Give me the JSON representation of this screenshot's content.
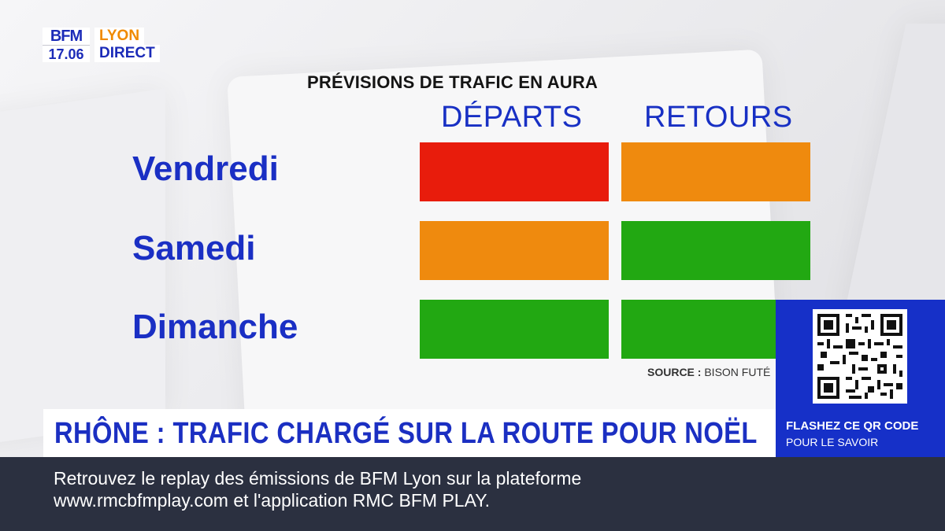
{
  "channel": {
    "brand": "BFM",
    "time": "17.06",
    "city": "LYON",
    "live": "DIRECT"
  },
  "graphic": {
    "title": "PRÉVISIONS DE TRAFIC EN AURA",
    "columns": [
      "DÉPARTS",
      "RETOURS"
    ],
    "rows": [
      {
        "day": "Vendredi",
        "departs_color": "#e81c0c",
        "retours_color": "#ef8a0e"
      },
      {
        "day": "Samedi",
        "departs_color": "#ef8a0e",
        "retours_color": "#22a812"
      },
      {
        "day": "Dimanche",
        "departs_color": "#22a812",
        "retours_color": "#22a812"
      }
    ],
    "source_label": "SOURCE :",
    "source_value": "BISON FUTÉ"
  },
  "qr": {
    "line1": "FLASHEZ CE QR CODE",
    "line2": "POUR LE SAVOIR",
    "panel_color": "#1630c8"
  },
  "headline": "RHÔNE : TRAFIC CHARGÉ SUR LA ROUTE POUR NOËL",
  "ticker": {
    "line1": "Retrouvez le replay des émissions de BFM Lyon sur la plateforme",
    "line2": "www.rmcbfmplay.com et l'application RMC BFM PLAY."
  }
}
